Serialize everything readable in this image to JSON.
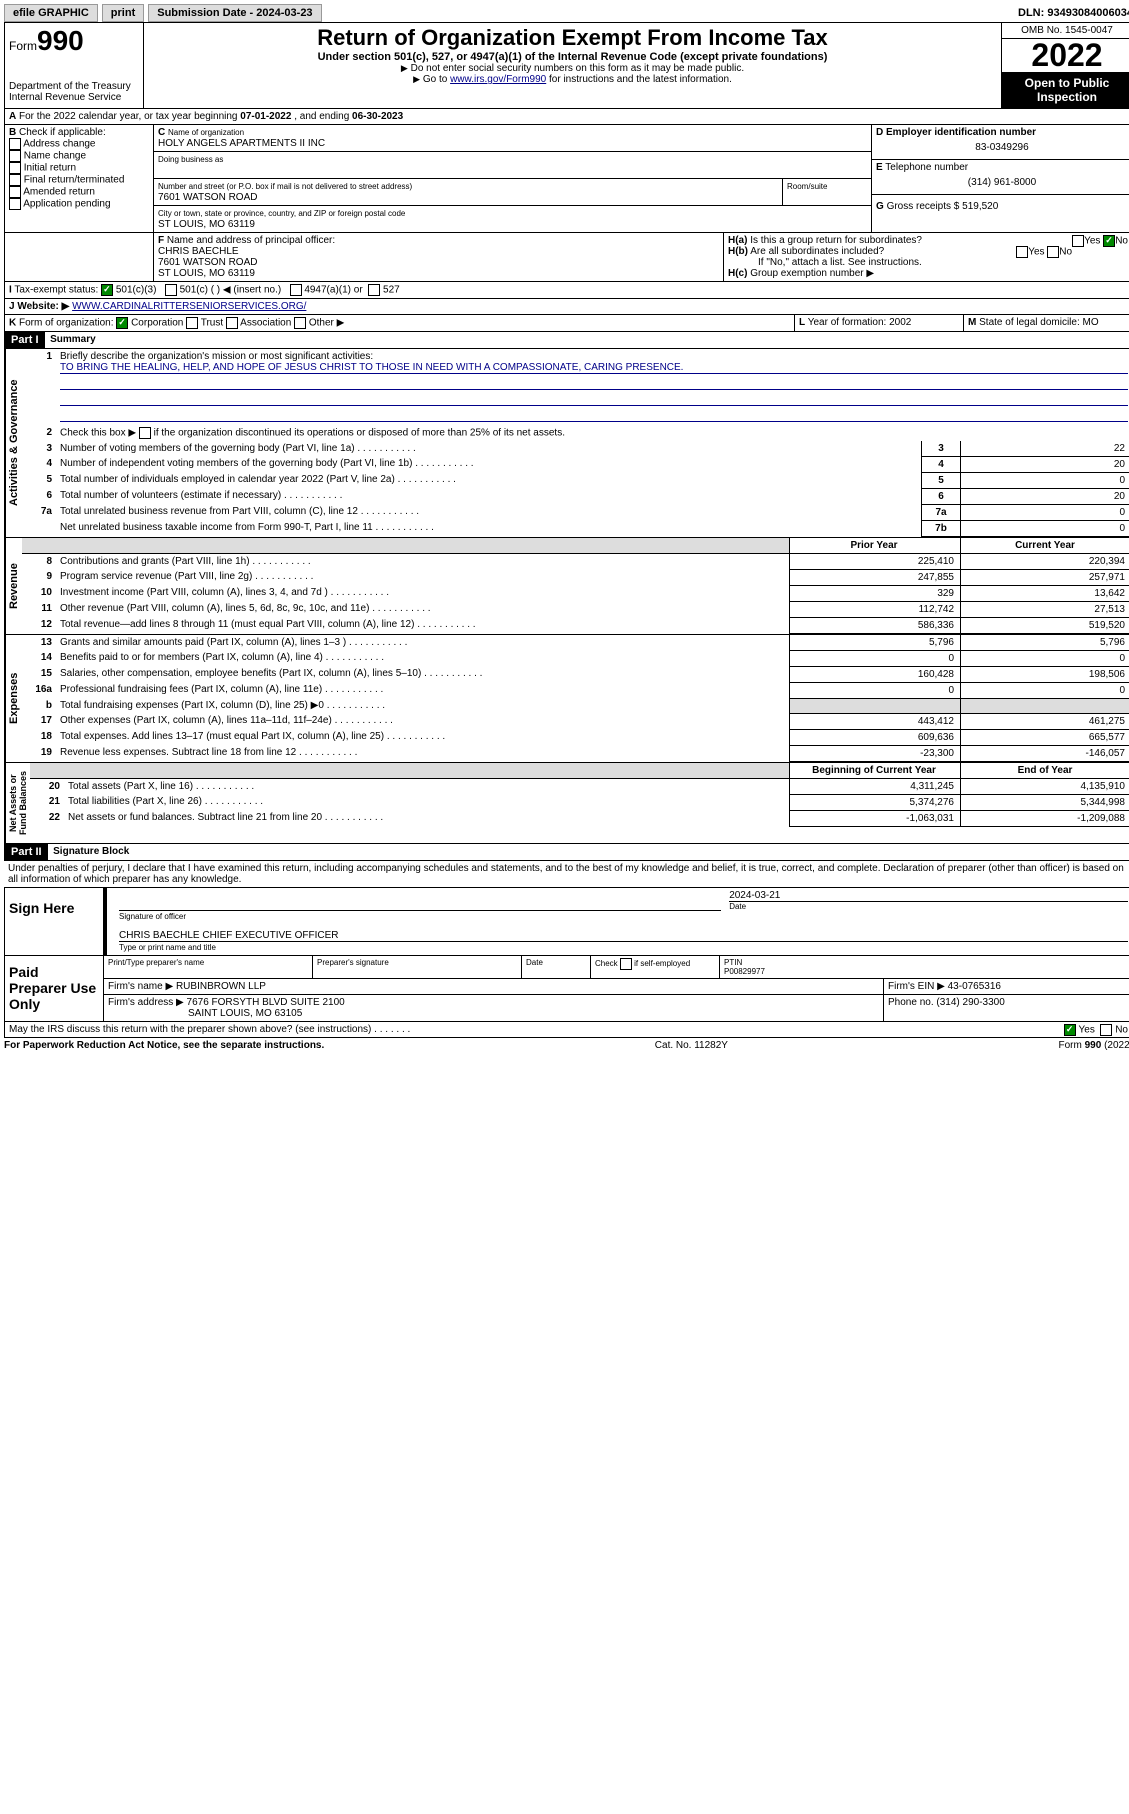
{
  "topbar": {
    "efile": "efile GRAPHIC",
    "print": "print",
    "subdate_lbl": "Submission Date - ",
    "subdate": "2024-03-23",
    "dln_lbl": "DLN: ",
    "dln": "93493084006034"
  },
  "header": {
    "form_pre": "Form",
    "form": "990",
    "dept": "Department of the Treasury",
    "irs": "Internal Revenue Service",
    "title": "Return of Organization Exempt From Income Tax",
    "sub1": "Under section 501(c), 527, or 4947(a)(1) of the Internal Revenue Code (except private foundations)",
    "sub2": "Do not enter social security numbers on this form as it may be made public.",
    "sub3_pre": "Go to ",
    "sub3_link": "www.irs.gov/Form990",
    "sub3_post": " for instructions and the latest information.",
    "omb": "OMB No. 1545-0047",
    "year": "2022",
    "public": "Open to Public Inspection"
  },
  "A": {
    "text": "For the 2022 calendar year, or tax year beginning ",
    "begin": "07-01-2022",
    "mid": " , and ending ",
    "end": "06-30-2023"
  },
  "B": {
    "label": "Check if applicable:",
    "opts": [
      "Address change",
      "Name change",
      "Initial return",
      "Final return/terminated",
      "Amended return",
      "Application pending"
    ]
  },
  "C": {
    "name_lbl": "Name of organization",
    "name": "HOLY ANGELS APARTMENTS II INC",
    "dba_lbl": "Doing business as",
    "dba": "",
    "street_lbl": "Number and street (or P.O. box if mail is not delivered to street address)",
    "room_lbl": "Room/suite",
    "street": "7601 WATSON ROAD",
    "city_lbl": "City or town, state or province, country, and ZIP or foreign postal code",
    "city": "ST LOUIS, MO  63119"
  },
  "D": {
    "lbl": "Employer identification number",
    "val": "83-0349296"
  },
  "E": {
    "lbl": "Telephone number",
    "val": "(314) 961-8000"
  },
  "G": {
    "lbl": "Gross receipts $",
    "val": "519,520"
  },
  "F": {
    "lbl": "Name and address of principal officer:",
    "name": "CHRIS BAECHLE",
    "addr1": "7601 WATSON ROAD",
    "addr2": "ST LOUIS, MO  63119"
  },
  "H": {
    "a": "Is this a group return for subordinates?",
    "b": "Are all subordinates included?",
    "bnote": "If \"No,\" attach a list. See instructions.",
    "c": "Group exemption number ▶",
    "yes": "Yes",
    "no": "No"
  },
  "I": {
    "lbl": "Tax-exempt status:",
    "o1": "501(c)(3)",
    "o2": "501(c) (  ) ◀ (insert no.)",
    "o3": "4947(a)(1) or",
    "o4": "527"
  },
  "J": {
    "lbl": "Website: ▶",
    "val": "WWW.CARDINALRITTERSENIORSERVICES.ORG/"
  },
  "K": {
    "lbl": "Form of organization:",
    "o1": "Corporation",
    "o2": "Trust",
    "o3": "Association",
    "o4": "Other ▶"
  },
  "L": {
    "lbl": "Year of formation:",
    "val": "2002"
  },
  "M": {
    "lbl": "State of legal domicile:",
    "val": "MO"
  },
  "part1": {
    "lbl": "Part I",
    "title": "Summary",
    "l1": "Briefly describe the organization's mission or most significant activities:",
    "mission": "TO BRING THE HEALING, HELP, AND HOPE OF JESUS CHRIST TO THOSE IN NEED WITH A COMPASSIONATE, CARING PRESENCE.",
    "l2": "Check this box ▶        if the organization discontinued its operations or disposed of more than 25% of its net assets.",
    "gov": [
      {
        "n": "3",
        "t": "Number of voting members of the governing body (Part VI, line 1a)",
        "v": "22"
      },
      {
        "n": "4",
        "t": "Number of independent voting members of the governing body (Part VI, line 1b)",
        "v": "20"
      },
      {
        "n": "5",
        "t": "Total number of individuals employed in calendar year 2022 (Part V, line 2a)",
        "v": "0"
      },
      {
        "n": "6",
        "t": "Total number of volunteers (estimate if necessary)",
        "v": "20"
      },
      {
        "n": "7a",
        "t": "Total unrelated business revenue from Part VIII, column (C), line 12",
        "v": "0"
      },
      {
        "n": "",
        "t": "Net unrelated business taxable income from Form 990-T, Part I, line 11",
        "nb": "7b",
        "v": "0"
      }
    ],
    "prior": "Prior Year",
    "current": "Current Year",
    "beg": "Beginning of Current Year",
    "end": "End of Year",
    "rev": [
      {
        "n": "8",
        "t": "Contributions and grants (Part VIII, line 1h)",
        "p": "225,410",
        "c": "220,394"
      },
      {
        "n": "9",
        "t": "Program service revenue (Part VIII, line 2g)",
        "p": "247,855",
        "c": "257,971"
      },
      {
        "n": "10",
        "t": "Investment income (Part VIII, column (A), lines 3, 4, and 7d )",
        "p": "329",
        "c": "13,642"
      },
      {
        "n": "11",
        "t": "Other revenue (Part VIII, column (A), lines 5, 6d, 8c, 9c, 10c, and 11e)",
        "p": "112,742",
        "c": "27,513"
      },
      {
        "n": "12",
        "t": "Total revenue—add lines 8 through 11 (must equal Part VIII, column (A), line 12)",
        "p": "586,336",
        "c": "519,520"
      }
    ],
    "exp": [
      {
        "n": "13",
        "t": "Grants and similar amounts paid (Part IX, column (A), lines 1–3 )",
        "p": "5,796",
        "c": "5,796"
      },
      {
        "n": "14",
        "t": "Benefits paid to or for members (Part IX, column (A), line 4)",
        "p": "0",
        "c": "0"
      },
      {
        "n": "15",
        "t": "Salaries, other compensation, employee benefits (Part IX, column (A), lines 5–10)",
        "p": "160,428",
        "c": "198,506"
      },
      {
        "n": "16a",
        "t": "Professional fundraising fees (Part IX, column (A), line 11e)",
        "p": "0",
        "c": "0"
      },
      {
        "n": "b",
        "t": "Total fundraising expenses (Part IX, column (D), line 25) ▶0",
        "p": "",
        "c": "",
        "gray": true
      },
      {
        "n": "17",
        "t": "Other expenses (Part IX, column (A), lines 11a–11d, 11f–24e)",
        "p": "443,412",
        "c": "461,275"
      },
      {
        "n": "18",
        "t": "Total expenses. Add lines 13–17 (must equal Part IX, column (A), line 25)",
        "p": "609,636",
        "c": "665,577"
      },
      {
        "n": "19",
        "t": "Revenue less expenses. Subtract line 18 from line 12",
        "p": "-23,300",
        "c": "-146,057"
      }
    ],
    "net": [
      {
        "n": "20",
        "t": "Total assets (Part X, line 16)",
        "p": "4,311,245",
        "c": "4,135,910"
      },
      {
        "n": "21",
        "t": "Total liabilities (Part X, line 26)",
        "p": "5,374,276",
        "c": "5,344,998"
      },
      {
        "n": "22",
        "t": "Net assets or fund balances. Subtract line 21 from line 20",
        "p": "-1,063,031",
        "c": "-1,209,088"
      }
    ],
    "vtab1": "Activities & Governance",
    "vtab2": "Revenue",
    "vtab3": "Expenses",
    "vtab4": "Net Assets or\nFund Balances"
  },
  "part2": {
    "lbl": "Part II",
    "title": "Signature Block",
    "decl": "Under penalties of perjury, I declare that I have examined this return, including accompanying schedules and statements, and to the best of my knowledge and belief, it is true, correct, and complete. Declaration of preparer (other than officer) is based on all information of which preparer has any knowledge.",
    "sign": "Sign Here",
    "sigoff": "Signature of officer",
    "date": "Date",
    "sigdate": "2024-03-21",
    "name": "CHRIS BAECHLE  CHIEF EXECUTIVE OFFICER",
    "typelbl": "Type or print name and title",
    "paid": "Paid Preparer Use Only",
    "p1": "Print/Type preparer's name",
    "p2": "Preparer's signature",
    "p3": "Date",
    "p4": "Check        if self-employed",
    "p5": "PTIN",
    "ptin": "P00829977",
    "firm": "Firm's name   ▶",
    "firmval": "RUBINBROWN LLP",
    "ein": "Firm's EIN ▶",
    "einval": "43-0765316",
    "addr": "Firm's address ▶",
    "addrval": "7676 FORSYTH BLVD SUITE 2100",
    "addr2": "SAINT LOUIS, MO  63105",
    "phone": "Phone no.",
    "phoneval": "(314) 290-3300",
    "may": "May the IRS discuss this return with the preparer shown above? (see instructions)",
    "yes": "Yes",
    "no": "No",
    "pra": "For Paperwork Reduction Act Notice, see the separate instructions.",
    "cat": "Cat. No. 11282Y",
    "form": "Form 990 (2022)"
  }
}
